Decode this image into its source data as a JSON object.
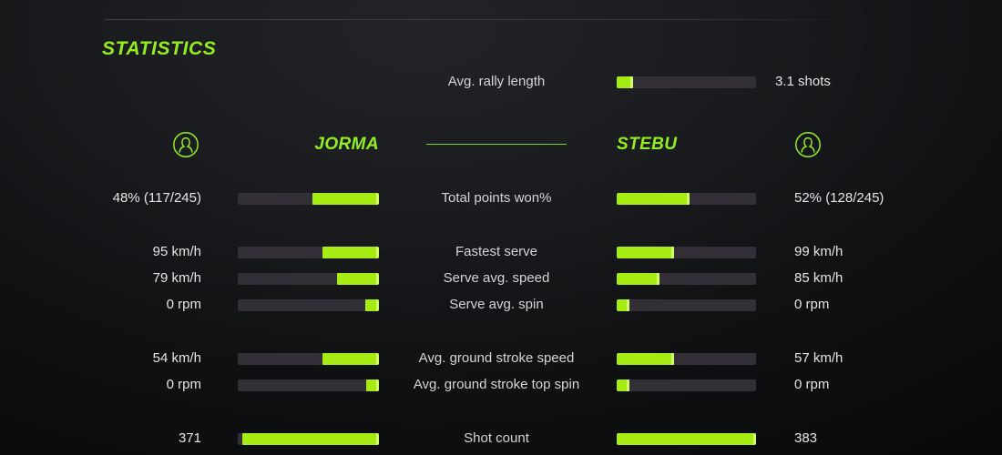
{
  "title": "STATISTICS",
  "colors": {
    "accent": "#93ee1f",
    "bar_fill": "#a6ec12",
    "bar_fill_edge": "#d2fa6a",
    "bar_track": "#332f36",
    "label_text": "#d3d6d9",
    "value_text": "#e4e6e8"
  },
  "rally": {
    "label": "Avg. rally length",
    "value": "3.1 shots",
    "fill_pct": 12
  },
  "players": {
    "left": {
      "name": "JORMA",
      "icon": "person-icon"
    },
    "right": {
      "name": "STEBU",
      "icon": "person-icon"
    }
  },
  "stats": [
    {
      "label": "Total points won%",
      "left_value": "48% (117/245)",
      "right_value": "52% (128/245)",
      "left_pct": 47,
      "right_pct": 52
    },
    {
      "label": "Fastest serve",
      "left_value": "95 km/h",
      "right_value": "99 km/h",
      "left_pct": 40,
      "right_pct": 41
    },
    {
      "label": "Serve avg. speed",
      "left_value": "79 km/h",
      "right_value": "85 km/h",
      "left_pct": 30,
      "right_pct": 31
    },
    {
      "label": "Serve avg. spin",
      "left_value": "0 rpm",
      "right_value": "0 rpm",
      "left_pct": 10,
      "right_pct": 9
    },
    {
      "label": "Avg. ground stroke speed",
      "left_value": "54 km/h",
      "right_value": "57 km/h",
      "left_pct": 40,
      "right_pct": 41
    },
    {
      "label": "Avg. ground stroke top spin",
      "left_value": "0 rpm",
      "right_value": "0 rpm",
      "left_pct": 9,
      "right_pct": 9
    },
    {
      "label": "Shot count",
      "left_value": "371",
      "right_value": "383",
      "left_pct": 97,
      "right_pct": 100
    }
  ]
}
